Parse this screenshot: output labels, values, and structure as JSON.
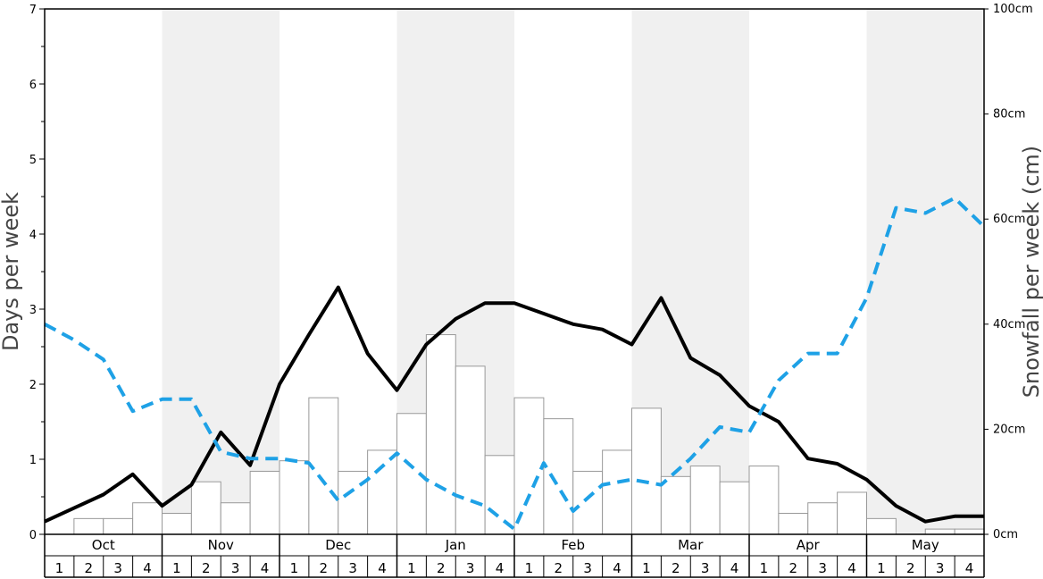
{
  "chart_data": {
    "type": "bar",
    "title": "",
    "ylabel_left": "Days per week",
    "ylabel_right": "Snowfall per week (cm)",
    "ylim_left": [
      0,
      7
    ],
    "ylim_right": [
      0,
      100
    ],
    "left_ticks": [
      "0",
      "1",
      "2",
      "3",
      "4",
      "5",
      "6",
      "7"
    ],
    "right_ticks": [
      "0cm",
      "20cm",
      "40cm",
      "60cm",
      "80cm",
      "100cm"
    ],
    "months": [
      "Oct",
      "Nov",
      "Dec",
      "Jan",
      "Feb",
      "Mar",
      "Apr",
      "May"
    ],
    "week_labels": [
      "1",
      "2",
      "3",
      "4"
    ],
    "shaded_months": [
      "Nov",
      "Jan",
      "Mar",
      "May"
    ],
    "colors": {
      "bars_fill": "#ffffff",
      "bars_stroke": "#999999",
      "solid_line": "#000000",
      "dashed_line": "#1ea1e6",
      "shade": "#f0f0f0"
    },
    "series": [
      {
        "kind": "bar",
        "axis": "right",
        "values": [
          0,
          3,
          3,
          6,
          4,
          10,
          6,
          12,
          14,
          26,
          12,
          16,
          23,
          38,
          32,
          15,
          26,
          22,
          12,
          16,
          24,
          11,
          13,
          10,
          13,
          4,
          6,
          8,
          3,
          0,
          1,
          1
        ]
      },
      {
        "kind": "line",
        "style": "solid",
        "axis": "left",
        "values": [
          0.17,
          0.35,
          0.53,
          0.8,
          0.38,
          0.66,
          1.36,
          0.92,
          2.0,
          2.66,
          3.29,
          2.41,
          1.92,
          2.53,
          2.87,
          3.08,
          3.08,
          2.94,
          2.8,
          2.73,
          2.53,
          3.15,
          2.35,
          2.12,
          1.71,
          1.5,
          1.01,
          0.94,
          0.73,
          0.38,
          0.17,
          0.24,
          0.24
        ]
      },
      {
        "kind": "line",
        "style": "dashed",
        "axis": "left",
        "values": [
          2.8,
          2.59,
          2.33,
          1.64,
          1.8,
          1.8,
          1.1,
          1.01,
          1.01,
          0.95,
          0.45,
          0.73,
          1.08,
          0.73,
          0.52,
          0.38,
          0.07,
          0.95,
          0.31,
          0.66,
          0.73,
          0.66,
          1.01,
          1.43,
          1.36,
          2.05,
          2.41,
          2.41,
          3.15,
          4.35,
          4.28,
          4.48,
          4.1
        ]
      }
    ]
  }
}
